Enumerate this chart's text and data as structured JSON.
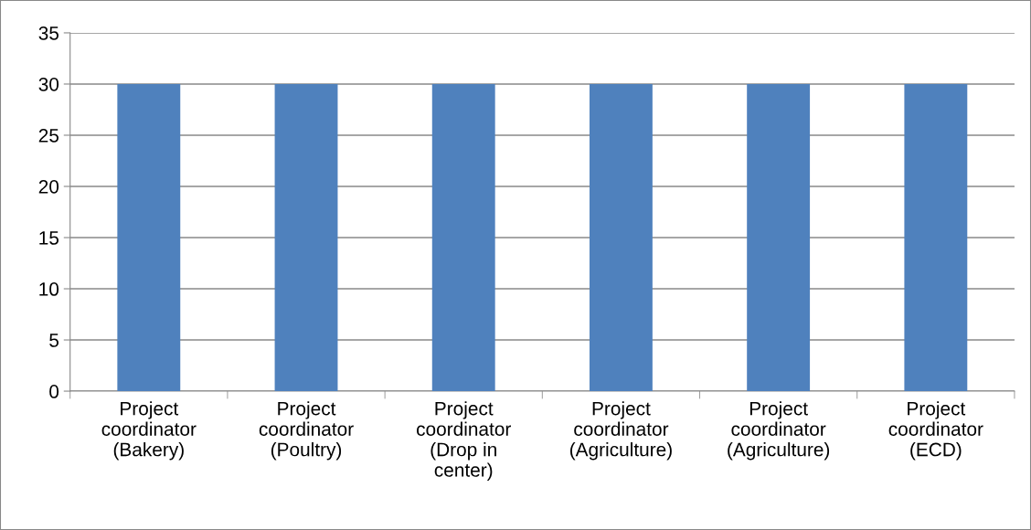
{
  "chart_data": {
    "type": "bar",
    "categories": [
      "Project\ncoordinator\n(Bakery)",
      "Project\ncoordinator\n(Poultry)",
      "Project\ncoordinator\n(Drop in\ncenter)",
      "Project\ncoordinator\n(Agriculture)",
      "Project\ncoordinator\n(Agriculture)",
      "Project\ncoordinator\n(ECD)"
    ],
    "values": [
      30,
      30,
      30,
      30,
      30,
      30
    ],
    "color": "#4f81bd",
    "ylim": [
      0,
      35
    ],
    "yticks": [
      0,
      5,
      10,
      15,
      20,
      25,
      30,
      35
    ],
    "grid": "y",
    "legend": false
  }
}
